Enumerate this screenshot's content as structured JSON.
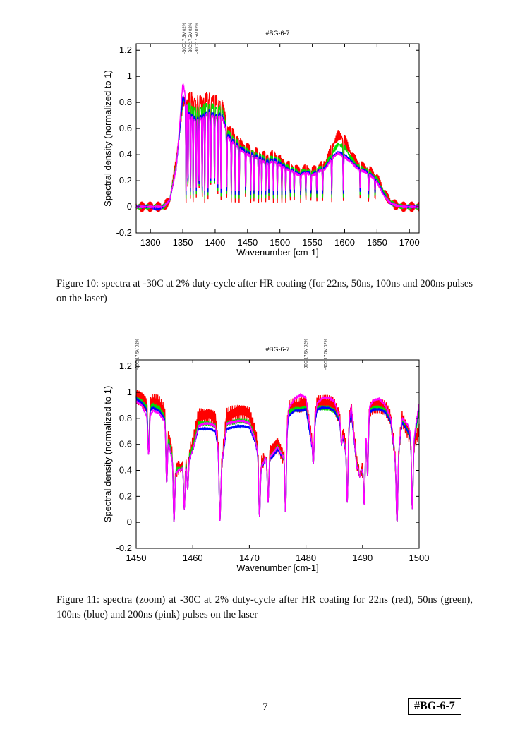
{
  "chart_data": [
    {
      "type": "line",
      "title": "#BG-6-7",
      "xlabel": "Wavenumber [cm-1]",
      "ylabel": "Spectral density (normalized to 1)",
      "xlim": [
        1278,
        1715
      ],
      "ylim": [
        -0.2,
        1.25
      ],
      "xticks": [
        1300,
        1350,
        1400,
        1450,
        1500,
        1550,
        1600,
        1650,
        1700
      ],
      "yticks": [
        -0.2,
        0,
        0.2,
        0.4,
        0.6,
        0.8,
        1,
        1.2
      ],
      "ytick_labels": [
        "-0.2",
        "0",
        "0.2",
        "0.4",
        "0.6",
        "0.8",
        "1",
        "1.2"
      ],
      "annotations": [
        {
          "text": "-30C 17.5V 02%",
          "x": 1352
        },
        {
          "text": "-30C 17.5V 02%",
          "x": 1354
        },
        {
          "text": "-30C 17.5V 02%",
          "x": 1356
        }
      ],
      "x": [
        1280,
        1290,
        1300,
        1310,
        1320,
        1330,
        1340,
        1350,
        1360,
        1370,
        1380,
        1390,
        1400,
        1410,
        1420,
        1430,
        1440,
        1450,
        1460,
        1470,
        1480,
        1490,
        1500,
        1510,
        1520,
        1530,
        1540,
        1550,
        1560,
        1570,
        1580,
        1590,
        1600,
        1610,
        1620,
        1630,
        1640,
        1650,
        1660,
        1670,
        1680,
        1690,
        1700,
        1710
      ],
      "series": [
        {
          "name": "22ns",
          "color": "#ff0000",
          "ripple": 0.04,
          "y": [
            0,
            0,
            0,
            0,
            0,
            0.05,
            0.35,
            0.8,
            0.85,
            0.82,
            0.82,
            0.85,
            0.82,
            0.8,
            0.6,
            0.55,
            0.48,
            0.45,
            0.42,
            0.4,
            0.38,
            0.4,
            0.36,
            0.32,
            0.3,
            0.27,
            0.29,
            0.27,
            0.3,
            0.33,
            0.45,
            0.55,
            0.52,
            0.4,
            0.33,
            0.3,
            0.27,
            0.22,
            0.12,
            0.04,
            0.01,
            0,
            0,
            0
          ]
        },
        {
          "name": "50ns",
          "color": "#00e000",
          "ripple": 0.02,
          "y": [
            0,
            0,
            0,
            0,
            0,
            0.05,
            0.33,
            0.82,
            0.78,
            0.75,
            0.76,
            0.79,
            0.76,
            0.76,
            0.57,
            0.52,
            0.46,
            0.43,
            0.41,
            0.39,
            0.36,
            0.38,
            0.35,
            0.31,
            0.29,
            0.26,
            0.28,
            0.26,
            0.29,
            0.31,
            0.41,
            0.48,
            0.46,
            0.37,
            0.31,
            0.29,
            0.26,
            0.21,
            0.11,
            0.035,
            0.01,
            0,
            0,
            0
          ]
        },
        {
          "name": "100ns",
          "color": "#0000ff",
          "ripple": 0.01,
          "y": [
            0,
            0,
            0,
            -0.02,
            0,
            0.05,
            0.3,
            0.85,
            0.72,
            0.68,
            0.7,
            0.74,
            0.7,
            0.72,
            0.55,
            0.5,
            0.45,
            0.42,
            0.4,
            0.38,
            0.35,
            0.37,
            0.34,
            0.3,
            0.28,
            0.25,
            0.27,
            0.25,
            0.28,
            0.3,
            0.38,
            0.42,
            0.4,
            0.35,
            0.3,
            0.28,
            0.25,
            0.2,
            0.1,
            0.03,
            0.01,
            0,
            0,
            0
          ]
        },
        {
          "name": "200ns",
          "color": "#ff00ff",
          "ripple": 0.01,
          "y": [
            0,
            0,
            0,
            0,
            0,
            0.05,
            0.3,
            0.95,
            0.7,
            0.66,
            0.68,
            0.72,
            0.68,
            0.7,
            0.53,
            0.48,
            0.43,
            0.4,
            0.38,
            0.36,
            0.33,
            0.35,
            0.32,
            0.29,
            0.27,
            0.24,
            0.26,
            0.24,
            0.27,
            0.29,
            0.37,
            0.41,
            0.38,
            0.34,
            0.29,
            0.27,
            0.24,
            0.19,
            0.09,
            0.03,
            0.01,
            0,
            0,
            0
          ]
        }
      ],
      "dips": [
        1355,
        1358,
        1362,
        1366,
        1371,
        1375,
        1380,
        1384,
        1389,
        1393,
        1399,
        1404,
        1409,
        1418,
        1425,
        1431,
        1437,
        1447,
        1455,
        1460,
        1467,
        1472,
        1478,
        1483,
        1490,
        1496,
        1503,
        1509,
        1516,
        1522,
        1532,
        1540,
        1548,
        1557,
        1566,
        1580,
        1598,
        1624,
        1637,
        1647
      ]
    },
    {
      "type": "line",
      "title": "#BG-6-7",
      "xlabel": "Wavenumber [cm-1]",
      "ylabel": "Spectral density (normalized to 1)",
      "xlim": [
        1450,
        1500
      ],
      "ylim": [
        -0.2,
        1.25
      ],
      "xticks": [
        1450,
        1460,
        1470,
        1480,
        1490,
        1500
      ],
      "yticks": [
        -0.2,
        0,
        0.2,
        0.4,
        0.6,
        0.8,
        1,
        1.2
      ],
      "ytick_labels": [
        "-0.2",
        "0",
        "0.2",
        "0.4",
        "0.6",
        "0.8",
        "1",
        "1.2"
      ],
      "annotations": [
        {
          "text": "-30C 17.5V 02%",
          "x": 1450.2
        },
        {
          "text": "-30C 17.5V 02%",
          "x": 1480
        },
        {
          "text": "-30C 17.5V 02%",
          "x": 1483.5
        }
      ],
      "x": [
        1450,
        1451,
        1452,
        1453,
        1454,
        1455,
        1456,
        1457,
        1458,
        1459,
        1460,
        1461,
        1462,
        1463,
        1464,
        1465,
        1466,
        1467,
        1468,
        1469,
        1470,
        1471,
        1472,
        1473,
        1474,
        1475,
        1476,
        1477,
        1478,
        1479,
        1480,
        1481,
        1482,
        1483,
        1484,
        1485,
        1486,
        1487,
        1488,
        1489,
        1490,
        1491,
        1492,
        1493,
        1494,
        1495,
        1496,
        1497,
        1498,
        1499,
        1500
      ],
      "series": [
        {
          "name": "22ns",
          "color": "#ff0000",
          "ripple": 0.06,
          "y": [
            0.97,
            0.95,
            0.9,
            0.93,
            0.92,
            0.85,
            0.6,
            0.4,
            0.45,
            0.5,
            0.6,
            0.82,
            0.82,
            0.82,
            0.8,
            0.4,
            0.82,
            0.84,
            0.85,
            0.85,
            0.83,
            0.7,
            0.45,
            0.5,
            0.55,
            0.6,
            0.5,
            0.88,
            0.9,
            0.9,
            0.92,
            0.65,
            0.92,
            0.92,
            0.92,
            0.9,
            0.8,
            0.6,
            0.88,
            0.45,
            0.4,
            0.85,
            0.9,
            0.9,
            0.88,
            0.8,
            0.4,
            0.8,
            0.7,
            0.6,
            0.7
          ]
        },
        {
          "name": "50ns",
          "color": "#00e000",
          "ripple": 0.02,
          "y": [
            0.95,
            0.93,
            0.88,
            0.9,
            0.88,
            0.82,
            0.58,
            0.4,
            0.43,
            0.48,
            0.58,
            0.76,
            0.76,
            0.76,
            0.74,
            0.4,
            0.76,
            0.77,
            0.78,
            0.78,
            0.77,
            0.65,
            0.43,
            0.48,
            0.52,
            0.58,
            0.5,
            0.85,
            0.87,
            0.87,
            0.88,
            0.62,
            0.88,
            0.88,
            0.88,
            0.86,
            0.78,
            0.58,
            0.86,
            0.43,
            0.4,
            0.85,
            0.88,
            0.88,
            0.86,
            0.78,
            0.4,
            0.78,
            0.7,
            0.6,
            0.85
          ]
        },
        {
          "name": "100ns",
          "color": "#0000ff",
          "ripple": 0.01,
          "y": [
            0.95,
            0.92,
            0.86,
            0.88,
            0.86,
            0.8,
            0.55,
            0.38,
            0.42,
            0.46,
            0.55,
            0.72,
            0.72,
            0.72,
            0.7,
            0.4,
            0.72,
            0.73,
            0.74,
            0.74,
            0.73,
            0.62,
            0.42,
            0.47,
            0.5,
            0.56,
            0.5,
            0.82,
            0.86,
            0.86,
            0.87,
            0.6,
            0.87,
            0.88,
            0.88,
            0.86,
            0.77,
            0.56,
            0.85,
            0.42,
            0.4,
            0.84,
            0.87,
            0.87,
            0.85,
            0.77,
            0.4,
            0.77,
            0.7,
            0.6,
            0.9
          ]
        },
        {
          "name": "200ns",
          "color": "#ff00ff",
          "ripple": 0.01,
          "y": [
            0.93,
            0.9,
            0.8,
            0.86,
            0.84,
            0.78,
            0.55,
            0.38,
            0.42,
            0.46,
            0.55,
            0.74,
            0.76,
            0.76,
            0.74,
            0.4,
            0.76,
            0.77,
            0.78,
            0.78,
            0.76,
            0.64,
            0.43,
            0.48,
            0.52,
            0.58,
            0.5,
            0.88,
            0.95,
            0.98,
            0.96,
            0.62,
            0.92,
            0.96,
            0.96,
            0.93,
            0.8,
            0.57,
            0.9,
            0.42,
            0.4,
            0.88,
            0.94,
            0.95,
            0.9,
            0.8,
            0.4,
            0.8,
            0.75,
            0.62,
            0.92
          ]
        }
      ],
      "dips": [
        1452.2,
        1455.4,
        1456.7,
        1457.9,
        1458.5,
        1459.1,
        1464.8,
        1471.8,
        1472.8,
        1473.3,
        1476.4,
        1481.3,
        1486.3,
        1487.3,
        1489.5,
        1490.3,
        1490.9,
        1496.1,
        1498.8
      ],
      "dip_depths": [
        0.52,
        0.3,
        0,
        0.4,
        0.1,
        0.25,
        0.01,
        0.04,
        0.5,
        0.15,
        0.07,
        0.45,
        0.6,
        0.15,
        0.35,
        0.13,
        0.35,
        0,
        0.1
      ]
    }
  ],
  "captions": [
    "Figure 10: spectra at -30C at 2% duty-cycle after HR coating (for 22ns, 50ns, 100ns and 200ns pulses on the laser)",
    "Figure 11: spectra (zoom) at -30C at 2% duty-cycle after HR coating for 22ns (red), 50ns (green), 100ns (blue) and 200ns (pink) pulses on the laser"
  ],
  "footer": {
    "page_number": "7",
    "tag": "#BG-6-7"
  }
}
